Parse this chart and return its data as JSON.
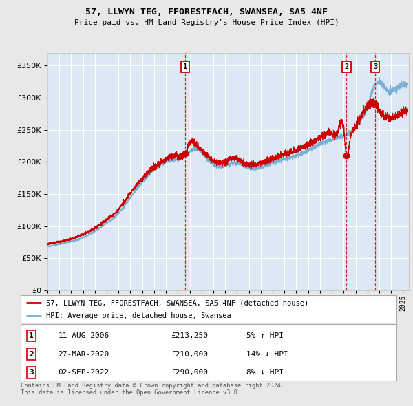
{
  "title": "57, LLWYN TEG, FFORESTFACH, SWANSEA, SA5 4NF",
  "subtitle": "Price paid vs. HM Land Registry's House Price Index (HPI)",
  "hpi_label": "HPI: Average price, detached house, Swansea",
  "property_label": "57, LLWYN TEG, FFORESTFACH, SWANSEA, SA5 4NF (detached house)",
  "red_line_color": "#cc0000",
  "blue_line_color": "#7ab0d4",
  "plot_bg_color": "#dce9f5",
  "annotations": [
    {
      "num": 1,
      "date": "11-AUG-2006",
      "price": "£213,250",
      "pct": "5% ↑ HPI",
      "x_val": 2006.62,
      "y_val": 213250
    },
    {
      "num": 2,
      "date": "27-MAR-2020",
      "price": "£210,000",
      "pct": "14% ↓ HPI",
      "x_val": 2020.24,
      "y_val": 210000
    },
    {
      "num": 3,
      "date": "02-SEP-2022",
      "price": "£290,000",
      "pct": "8% ↓ HPI",
      "x_val": 2022.67,
      "y_val": 290000
    }
  ],
  "footer": "Contains HM Land Registry data © Crown copyright and database right 2024.\nThis data is licensed under the Open Government Licence v3.0.",
  "ylim": [
    0,
    370000
  ],
  "yticks": [
    0,
    50000,
    100000,
    150000,
    200000,
    250000,
    300000,
    350000
  ],
  "xlim_start": 1995.0,
  "xlim_end": 2025.5,
  "xtick_years": [
    1995,
    1996,
    1997,
    1998,
    1999,
    2000,
    2001,
    2002,
    2003,
    2004,
    2005,
    2006,
    2007,
    2008,
    2009,
    2010,
    2011,
    2012,
    2013,
    2014,
    2015,
    2016,
    2017,
    2018,
    2019,
    2020,
    2021,
    2022,
    2023,
    2024,
    2025
  ]
}
